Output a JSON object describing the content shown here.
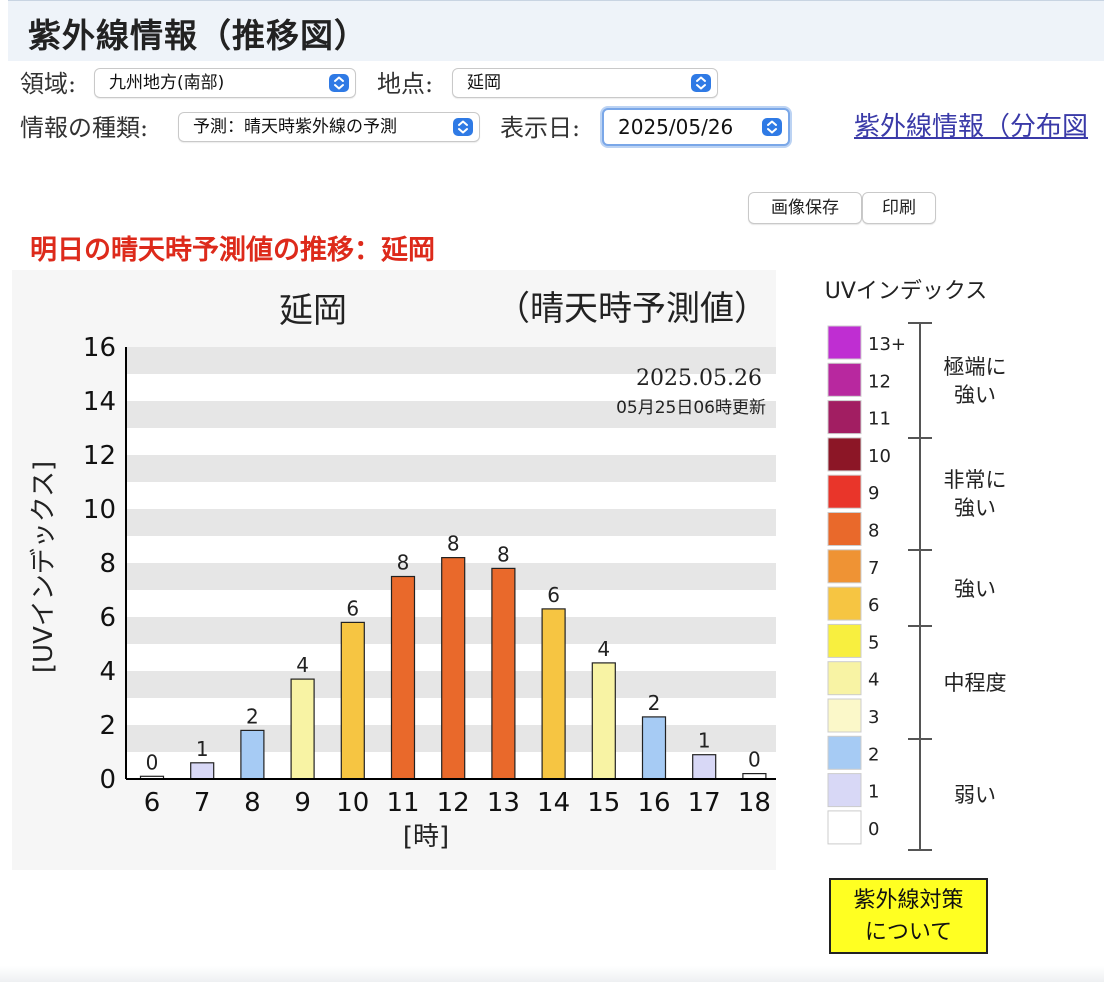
{
  "page": {
    "title": "紫外線情報（推移図）",
    "region_label": "領域:",
    "region_value": "九州地方(南部)",
    "point_label": "地点:",
    "point_value": "延岡",
    "info_type_label": "情報の種類:",
    "info_type_value": "予測：晴天時紫外線の予測",
    "date_label": "表示日:",
    "date_value": "2025/05/26",
    "distribution_link": "紫外線情報（分布図",
    "save_image_button": "画像保存",
    "print_button": "印刷",
    "subheading": "明日の晴天時予測値の推移：延岡",
    "measures_button_line1": "紫外線対策",
    "measures_button_line2": "について"
  },
  "chart_data": {
    "type": "bar",
    "title": "延岡",
    "subtitle": "（晴天時予測値）",
    "date_stamp": "2025.05.26",
    "update_stamp": "05月25日06時更新",
    "xlabel": "[時]",
    "ylabel": "[UVインデックス]",
    "ylim": [
      0,
      16
    ],
    "yticks": [
      0,
      2,
      4,
      6,
      8,
      10,
      12,
      14,
      16
    ],
    "grid": "horizontal stripes",
    "categories": [
      "6",
      "7",
      "8",
      "9",
      "10",
      "11",
      "12",
      "13",
      "14",
      "15",
      "16",
      "17",
      "18"
    ],
    "values": [
      0.1,
      0.6,
      1.8,
      3.7,
      5.8,
      7.5,
      8.2,
      7.8,
      6.3,
      4.3,
      2.3,
      0.9,
      0.2
    ],
    "data_labels": [
      "0",
      "1",
      "2",
      "4",
      "6",
      "8",
      "8",
      "8",
      "6",
      "4",
      "2",
      "1",
      "0"
    ],
    "bar_colors": [
      "#ffffff",
      "#d8d8f6",
      "#a6cbf4",
      "#f8f3a4",
      "#f6c542",
      "#e9692b",
      "#e9692b",
      "#e9692b",
      "#f6c542",
      "#f8f3a4",
      "#a6cbf4",
      "#d8d8f6",
      "#ffffff"
    ]
  },
  "legend": {
    "title": "UVインデックス",
    "levels": [
      {
        "label": "13+",
        "color": "#bf2ed2"
      },
      {
        "label": "12",
        "color": "#b8289f"
      },
      {
        "label": "11",
        "color": "#a21e62"
      },
      {
        "label": "10",
        "color": "#8c1626"
      },
      {
        "label": "9",
        "color": "#e9352a"
      },
      {
        "label": "8",
        "color": "#e9692b"
      },
      {
        "label": "7",
        "color": "#ef9334"
      },
      {
        "label": "6",
        "color": "#f6c542"
      },
      {
        "label": "5",
        "color": "#f8ef3f"
      },
      {
        "label": "4",
        "color": "#f8f3a4"
      },
      {
        "label": "3",
        "color": "#fbf8c9"
      },
      {
        "label": "2",
        "color": "#a6cbf4"
      },
      {
        "label": "1",
        "color": "#d8d8f6"
      },
      {
        "label": "0",
        "color": "#ffffff"
      }
    ],
    "categories": [
      {
        "line1": "極端に",
        "line2": "強い"
      },
      {
        "line1": "非常に",
        "line2": "強い"
      },
      {
        "line1": "強い",
        "line2": ""
      },
      {
        "line1": "中程度",
        "line2": ""
      },
      {
        "line1": "弱い",
        "line2": ""
      }
    ]
  }
}
